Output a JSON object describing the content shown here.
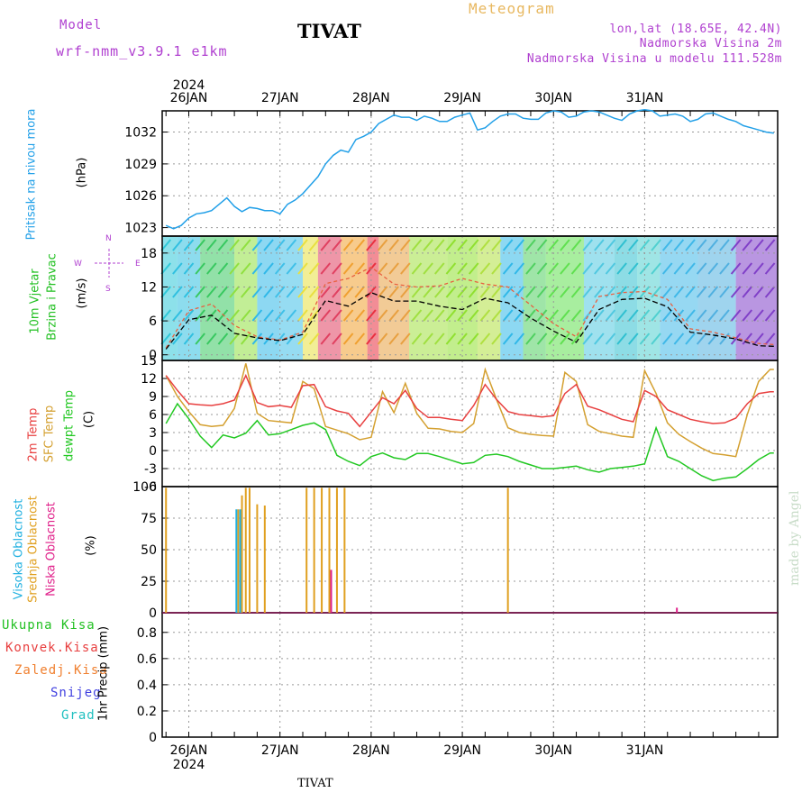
{
  "header": {
    "model_label": "Model",
    "model_name": "wrf-nmm_v3.9.1 e1km",
    "station": "TIVAT",
    "meteogram": "Meteogram",
    "lonlat": "lon,lat (18.65E, 42.4N)",
    "elevation": "Nadmorska Visina 2m",
    "model_elevation": "Nadmorska Visina u modelu 111.528m",
    "footer_station": "TIVAT",
    "credit": "made by Angel"
  },
  "colors": {
    "pressure": "#22a0e8",
    "wind_label": "#22c022",
    "temp_2m": "#e84040",
    "temp_sfc": "#d4a030",
    "dewpt": "#22c822",
    "cloud_high": "#20b0e0",
    "cloud_mid": "#e0a020",
    "cloud_low": "#e0208a",
    "compass": "#b040d0",
    "rain_total": "#22c022",
    "rain_conv": "#e84040",
    "rain_frz": "#f08030",
    "snow": "#4040e0",
    "grad": "#20c0c0"
  },
  "chart_data": {
    "type": "line",
    "x_days": [
      "26JAN",
      "27JAN",
      "28JAN",
      "29JAN",
      "30JAN",
      "31JAN"
    ],
    "year": "2024",
    "x_range_hours": [
      -7,
      155
    ],
    "panels": {
      "pressure": {
        "ylabel": "Pritisak na nivou mora",
        "unit": "(hPa)",
        "yticks": [
          1023,
          1026,
          1029,
          1032
        ],
        "ylim": [
          1022.2,
          1034.0
        ],
        "x_hours": [
          -6,
          -4,
          -2,
          0,
          2,
          4,
          6,
          8,
          10,
          12,
          14,
          16,
          18,
          20,
          22,
          24,
          26,
          28,
          30,
          32,
          34,
          36,
          38,
          40,
          42,
          44,
          46,
          48,
          50,
          52,
          54,
          56,
          58,
          60,
          62,
          64,
          66,
          68,
          70,
          72,
          74,
          76,
          78,
          80,
          82,
          84,
          86,
          88,
          90,
          92,
          94,
          96,
          98,
          100,
          102,
          104,
          106,
          108,
          110,
          112,
          114,
          116,
          118,
          120,
          122,
          124,
          126,
          128,
          130,
          132,
          134,
          136,
          138,
          140,
          142,
          144,
          146,
          148,
          150,
          152,
          154
        ],
        "values": [
          1023.2,
          1022.9,
          1023.2,
          1023.9,
          1024.3,
          1024.4,
          1024.6,
          1025.2,
          1025.8,
          1025.0,
          1024.5,
          1024.9,
          1024.8,
          1024.6,
          1024.6,
          1024.3,
          1025.2,
          1025.6,
          1026.2,
          1027.0,
          1027.8,
          1029.0,
          1029.8,
          1030.3,
          1030.1,
          1031.3,
          1031.6,
          1032.0,
          1032.8,
          1033.2,
          1033.6,
          1033.4,
          1033.4,
          1033.1,
          1033.5,
          1033.3,
          1033.0,
          1033.0,
          1033.4,
          1033.6,
          1033.8,
          1032.2,
          1032.4,
          1033.0,
          1033.5,
          1033.7,
          1033.7,
          1033.3,
          1033.2,
          1033.2,
          1033.8,
          1034.0,
          1033.9,
          1033.4,
          1033.5,
          1033.9,
          1034.0,
          1033.9,
          1033.6,
          1033.3,
          1033.1,
          1033.7,
          1034.0,
          1034.1,
          1034.0,
          1033.5,
          1033.6,
          1033.7,
          1033.5,
          1033.0,
          1033.2,
          1033.7,
          1033.8,
          1033.5,
          1033.2,
          1033.0,
          1032.6,
          1032.4,
          1032.2,
          1032.0,
          1031.9
        ]
      },
      "wind": {
        "ylabel_lines": [
          "10m Vjetar",
          "Brzina i Pravac"
        ],
        "unit": "(m/s)",
        "compass": [
          "N",
          "E",
          "W",
          "S"
        ],
        "yticks": [
          0,
          6,
          12,
          18
        ],
        "ylim": [
          -1,
          21
        ],
        "x_hours": [
          -6,
          0,
          6,
          12,
          18,
          24,
          30,
          36,
          42,
          48,
          54,
          60,
          66,
          72,
          78,
          84,
          90,
          96,
          102,
          108,
          114,
          120,
          126,
          132,
          138,
          144,
          150,
          154
        ],
        "speed": [
          1.0,
          6.2,
          7.0,
          3.8,
          3.0,
          2.5,
          3.6,
          9.6,
          8.6,
          11.0,
          9.5,
          9.5,
          8.6,
          8.0,
          10.0,
          9.2,
          6.5,
          4.2,
          2.2,
          8.0,
          9.8,
          10.0,
          8.5,
          4.0,
          3.5,
          2.8,
          1.6,
          1.5
        ],
        "gust": [
          1.2,
          7.8,
          9.0,
          5.2,
          3.2,
          2.6,
          4.0,
          12.6,
          13.5,
          15.5,
          12.5,
          12.0,
          12.2,
          13.5,
          12.5,
          12.0,
          8.8,
          5.5,
          3.2,
          10.3,
          11.0,
          11.2,
          9.8,
          4.6,
          4.0,
          3.0,
          2.0,
          1.8
        ]
      },
      "temperature": {
        "ylabel_lines": [
          "2m Temp",
          "SFC Temp",
          "dewpt Temp"
        ],
        "unit": "(C)",
        "yticks": [
          -6,
          -3,
          0,
          3,
          6,
          9,
          12,
          15
        ],
        "ylim": [
          -6,
          15
        ],
        "x_hours": [
          -6,
          -3,
          0,
          3,
          6,
          9,
          12,
          15,
          18,
          21,
          24,
          27,
          30,
          33,
          36,
          39,
          42,
          45,
          48,
          51,
          54,
          57,
          60,
          63,
          66,
          69,
          72,
          75,
          78,
          81,
          84,
          87,
          90,
          93,
          96,
          99,
          102,
          105,
          108,
          111,
          114,
          117,
          120,
          123,
          126,
          129,
          132,
          135,
          138,
          141,
          144,
          147,
          150,
          153,
          154
        ],
        "t2m": [
          12.5,
          10.0,
          7.8,
          7.6,
          7.5,
          7.8,
          8.4,
          12.5,
          8.0,
          7.3,
          7.5,
          7.2,
          10.8,
          11.0,
          7.3,
          6.6,
          6.2,
          4.0,
          6.4,
          8.8,
          7.8,
          10.0,
          7.0,
          5.5,
          5.5,
          5.2,
          5.0,
          7.5,
          11.0,
          8.5,
          6.5,
          6.0,
          5.8,
          5.6,
          5.8,
          9.5,
          11.0,
          7.4,
          6.8,
          6.0,
          5.2,
          4.8,
          10.0,
          9.0,
          6.8,
          6.0,
          5.2,
          4.8,
          4.5,
          4.6,
          5.4,
          7.8,
          9.5,
          9.8,
          9.8
        ],
        "tsfc": [
          12.5,
          9.0,
          6.5,
          4.3,
          4.0,
          4.2,
          7.0,
          14.5,
          6.2,
          5.0,
          4.8,
          4.6,
          11.5,
          10.3,
          4.0,
          3.4,
          2.8,
          1.8,
          2.2,
          9.8,
          6.3,
          11.2,
          6.2,
          3.7,
          3.6,
          3.2,
          3.0,
          4.5,
          13.5,
          8.5,
          3.8,
          3.0,
          2.7,
          2.5,
          2.4,
          13.0,
          11.5,
          4.3,
          3.2,
          2.8,
          2.4,
          2.2,
          13.3,
          9.5,
          4.6,
          2.7,
          1.5,
          0.4,
          -0.5,
          -0.7,
          -1.0,
          6.0,
          11.5,
          13.5,
          13.5
        ],
        "dewpt": [
          4.5,
          7.8,
          5.3,
          2.4,
          0.5,
          2.6,
          2.1,
          2.9,
          5.0,
          2.6,
          2.8,
          3.5,
          4.2,
          4.6,
          3.5,
          -0.8,
          -1.8,
          -2.5,
          -1.0,
          -0.4,
          -1.2,
          -1.5,
          -0.5,
          -0.5,
          -1.0,
          -1.6,
          -2.2,
          -2.0,
          -0.8,
          -0.6,
          -1.0,
          -1.8,
          -2.4,
          -3.0,
          -3.0,
          -2.8,
          -2.6,
          -3.2,
          -3.6,
          -3.0,
          -2.8,
          -2.6,
          -2.2,
          3.8,
          -1.0,
          -1.8,
          -3.0,
          -4.2,
          -5.0,
          -4.6,
          -4.4,
          -3.0,
          -1.5,
          -0.4,
          -0.4
        ]
      },
      "cloud": {
        "ylabel_lines": [
          "Visoka Oblacnost",
          "Srednja Oblacnost",
          "Niska Oblacnost"
        ],
        "unit": "(%)",
        "yticks": [
          0,
          25,
          50,
          75,
          100
        ],
        "ylim": [
          0,
          100
        ],
        "mid_bars": [
          {
            "x": -6,
            "v": 99
          },
          {
            "x": 13,
            "v": 82
          },
          {
            "x": 14,
            "v": 93
          },
          {
            "x": 15,
            "v": 99
          },
          {
            "x": 16,
            "v": 99
          },
          {
            "x": 18,
            "v": 86
          },
          {
            "x": 20,
            "v": 85
          },
          {
            "x": 31,
            "v": 99
          },
          {
            "x": 33,
            "v": 99
          },
          {
            "x": 35,
            "v": 99
          },
          {
            "x": 37,
            "v": 99
          },
          {
            "x": 39,
            "v": 99
          },
          {
            "x": 41,
            "v": 99
          },
          {
            "x": 84,
            "v": 99
          }
        ],
        "high_bars": [
          {
            "x": 13,
            "v": 82
          },
          {
            "x": 14,
            "v": 82
          }
        ],
        "low_bars": [
          {
            "x": 37,
            "v": 34
          },
          {
            "x": 128,
            "v": 4
          }
        ]
      },
      "precip": {
        "legend": [
          "Ukupna Kisa",
          "Konvek.Kisa",
          "Zaledj.Kisa",
          "Snijeg",
          "Grad"
        ],
        "ylabel": "1hr Precip (mm)",
        "yticks": [
          "0",
          "0.2",
          "0.4",
          "0.6",
          "0.8"
        ],
        "ylim": [
          0,
          0.95
        ]
      }
    }
  }
}
